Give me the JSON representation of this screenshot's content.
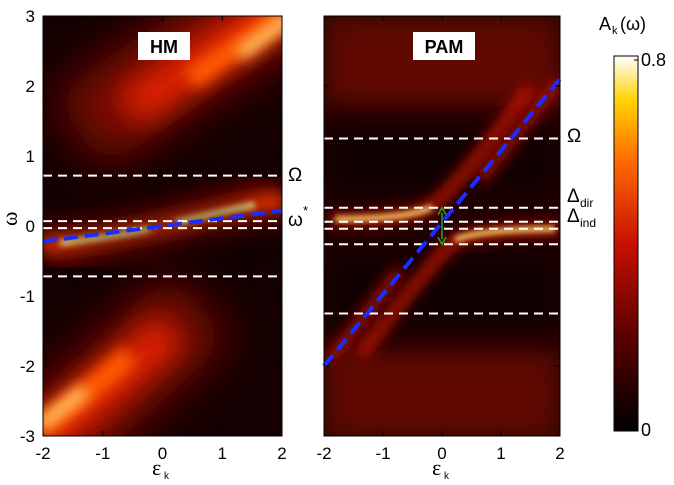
{
  "chart_data": [
    {
      "type": "heatmap",
      "title": "HM",
      "xlabel": "ε_k",
      "ylabel": "ω",
      "xlim": [
        -2,
        2
      ],
      "ylim": [
        -3,
        3
      ],
      "x_ticks": [
        "-2",
        "-1",
        "0",
        "1",
        "2"
      ],
      "y_ticks": [
        "3",
        "2",
        "1",
        "0",
        "-1",
        "-2",
        "-3"
      ],
      "reference_lines": [
        {
          "label": "Ω",
          "y": 0.72,
          "style": "white dashed"
        },
        {
          "label": "ω*",
          "y": 0.07,
          "style": "white dashed"
        },
        {
          "label": "",
          "y": -0.03,
          "style": "white dashed"
        },
        {
          "label": "",
          "y": -0.72,
          "style": "white dashed"
        }
      ],
      "dispersion_line": {
        "style": "blue dashed",
        "points": [
          [
            -2,
            -0.22
          ],
          [
            2,
            0.22
          ]
        ]
      }
    },
    {
      "type": "heatmap",
      "title": "PAM",
      "xlabel": "ε_k",
      "xlim": [
        -2,
        2
      ],
      "ylim": [
        -3,
        3
      ],
      "x_ticks": [
        "-2",
        "-1",
        "0",
        "1",
        "2"
      ],
      "reference_lines": [
        {
          "label": "Ω",
          "y": 1.25,
          "style": "white dashed"
        },
        {
          "label": "Δdir",
          "y": 0.26,
          "style": "white dashed"
        },
        {
          "label": "Δind",
          "y": 0.06,
          "style": "white dashed"
        },
        {
          "label": "",
          "y": -0.04,
          "style": "white dashed"
        },
        {
          "label": "",
          "y": -0.26,
          "style": "white dashed"
        },
        {
          "label": "",
          "y": -1.25,
          "style": "white dashed"
        }
      ],
      "dispersion_line": {
        "style": "blue dashed",
        "points": [
          [
            -2,
            -2.0
          ],
          [
            2,
            2.1
          ]
        ]
      },
      "gap_arrow": {
        "x": 0,
        "y_from": -0.26,
        "y_to": 0.26,
        "color": "#22aa22"
      }
    }
  ],
  "colorbar": {
    "label_base": "A",
    "label_sub": "k",
    "label_tail": "(ω)",
    "max_label": "0.8",
    "min_label": "0",
    "range": [
      0,
      0.8
    ]
  },
  "labels": {
    "hm_title": "HM",
    "pam_title": "PAM",
    "x_symbol": "ε",
    "x_sub": "k",
    "y_symbol": "ω",
    "omega": "Ω",
    "omega_star": "ω",
    "star": "*",
    "delta": "Δ",
    "dir": "dir",
    "ind": "ind"
  }
}
